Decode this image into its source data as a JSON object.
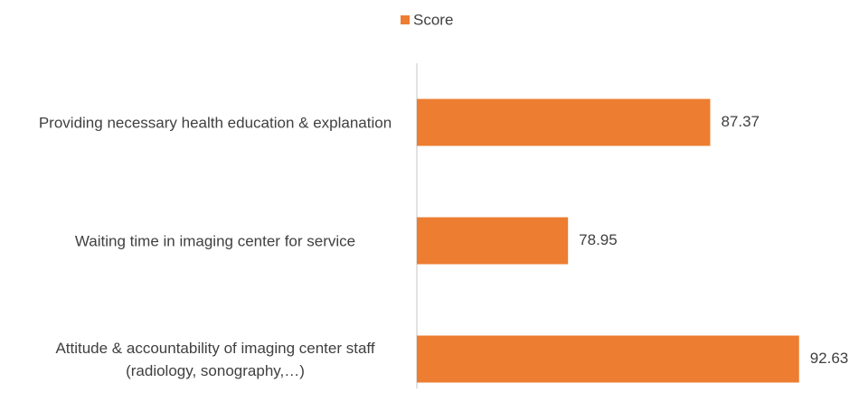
{
  "chart_data": {
    "type": "bar",
    "orientation": "horizontal",
    "categories": [
      "Providing necessary health education & explanation",
      "Waiting time in imaging center for service",
      "Attitude & accountability of imaging center staff (radiology, sonography,…)"
    ],
    "series": [
      {
        "name": "Score",
        "color": "#ed7d31",
        "values": [
          87.37,
          78.95,
          92.63
        ]
      }
    ],
    "xlim": [
      70,
      95
    ],
    "legend": "top"
  }
}
